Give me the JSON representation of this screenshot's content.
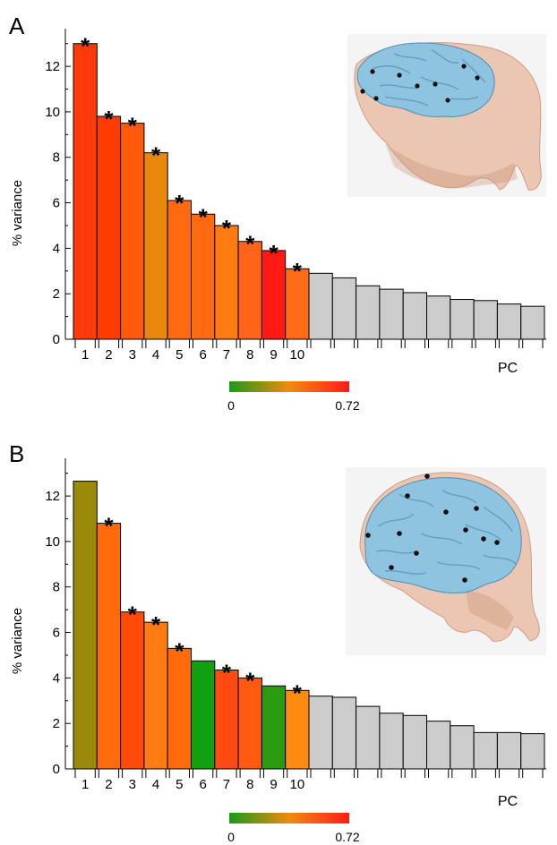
{
  "colorbar": {
    "min_label": "0",
    "max_label": "0.72",
    "colors": [
      "#1a9a1a",
      "#f08a10",
      "#ff1a1a"
    ]
  },
  "skull_colors": {
    "bone": "#e9bfa8",
    "bone_edge": "#c98e72",
    "brain": "#8fc4e0",
    "brain_edge": "#4f8fb4",
    "dot": "#111111"
  },
  "chart_data": [
    {
      "panel_label": "A",
      "type": "bar",
      "categories": [
        "1",
        "2",
        "3",
        "4",
        "5",
        "6",
        "7",
        "8",
        "9",
        "10",
        "",
        "",
        "",
        "",
        "",
        "",
        "",
        "",
        "",
        ""
      ],
      "values": [
        13.0,
        9.8,
        9.5,
        8.2,
        6.1,
        5.5,
        5.0,
        4.3,
        3.9,
        3.1,
        2.9,
        2.7,
        2.35,
        2.2,
        2.05,
        1.9,
        1.75,
        1.7,
        1.55,
        1.45
      ],
      "significant": [
        true,
        true,
        true,
        true,
        true,
        true,
        true,
        true,
        true,
        true,
        false,
        false,
        false,
        false,
        false,
        false,
        false,
        false,
        false,
        false
      ],
      "bar_colors": [
        "#ff3a0a",
        "#ff3c00",
        "#ff5a0a",
        "#e8880a",
        "#ff6a10",
        "#ff6a10",
        "#ff7a10",
        "#ff6418",
        "#ff1a14",
        "#ff6a14",
        "#cccccc",
        "#cccccc",
        "#cccccc",
        "#cccccc",
        "#cccccc",
        "#cccccc",
        "#cccccc",
        "#cccccc",
        "#cccccc",
        "#cccccc"
      ],
      "ylabel": "% variance",
      "xlabel": "PC",
      "ylim": [
        0,
        13.5
      ],
      "yticks": [
        0,
        2,
        4,
        6,
        8,
        10,
        12
      ],
      "annotation": "*"
    },
    {
      "panel_label": "B",
      "type": "bar",
      "categories": [
        "1",
        "2",
        "3",
        "4",
        "5",
        "6",
        "7",
        "8",
        "9",
        "10",
        "",
        "",
        "",
        "",
        "",
        "",
        "",
        "",
        "",
        ""
      ],
      "values": [
        12.65,
        10.8,
        6.9,
        6.45,
        5.3,
        4.75,
        4.35,
        4.0,
        3.65,
        3.45,
        3.2,
        3.15,
        2.75,
        2.45,
        2.35,
        2.1,
        1.9,
        1.6,
        1.6,
        1.55
      ],
      "significant": [
        false,
        true,
        true,
        true,
        true,
        false,
        true,
        true,
        false,
        true,
        false,
        false,
        false,
        false,
        false,
        false,
        false,
        false,
        false,
        false
      ],
      "bar_colors": [
        "#9a8a0a",
        "#ff6a0a",
        "#ff4a0a",
        "#ff7a10",
        "#ff6a0a",
        "#10a010",
        "#ff4a10",
        "#ff5a10",
        "#2a9a10",
        "#ff8a10",
        "#cccccc",
        "#cccccc",
        "#cccccc",
        "#cccccc",
        "#cccccc",
        "#cccccc",
        "#cccccc",
        "#cccccc",
        "#cccccc",
        "#cccccc"
      ],
      "ylabel": "% variance",
      "xlabel": "PC",
      "ylim": [
        0,
        13.5
      ],
      "yticks": [
        0,
        2,
        4,
        6,
        8,
        10,
        12
      ],
      "annotation": "*"
    }
  ]
}
